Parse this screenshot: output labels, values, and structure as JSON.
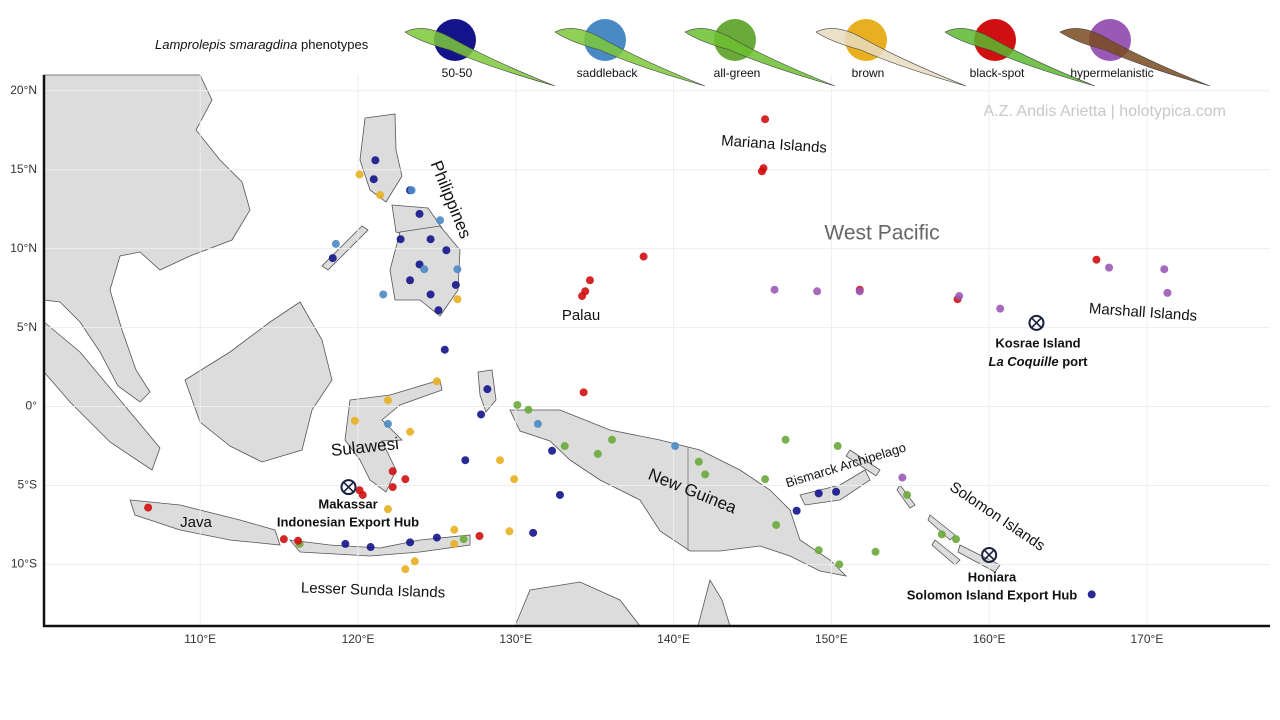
{
  "legend_title": {
    "italic": "Lamprolepis smaragdina",
    "rest": "phenotypes"
  },
  "credit": "A.Z. Andis Arietta | holotypica.com",
  "labels": {
    "philippines": "Philippines",
    "mariana": "Mariana Islands",
    "west_pacific": "West Pacific",
    "palau": "Palau",
    "marshall": "Marshall  Islands",
    "sulawesi": "Sulawesi",
    "java": "Java",
    "new_guinea": "New Guinea",
    "bismarck": "Bismarck Archipelago",
    "solomon": "Solomon Islands",
    "lesser_sunda": "Lesser Sunda Islands"
  },
  "ports": [
    {
      "name": "Makassar",
      "subtitle": "Indonesian Export Hub",
      "lon": 119.4,
      "lat": -5.1
    },
    {
      "name": "Kosrae Island",
      "subtitle_italic": "La Coquille",
      "subtitle_rest": "port",
      "lon": 163.0,
      "lat": 5.3
    },
    {
      "name": "Honiara",
      "subtitle": "Solomon Island Export Hub",
      "lon": 160.0,
      "lat": -9.4
    }
  ],
  "chart_data": {
    "type": "scatter",
    "xlim": [
      100.1,
      177.8
    ],
    "ylim": [
      -13.9,
      21
    ],
    "grid": true,
    "xticks": [
      {
        "value": 110,
        "label": "110°E"
      },
      {
        "value": 120,
        "label": "120°E"
      },
      {
        "value": 130,
        "label": "130°E"
      },
      {
        "value": 140,
        "label": "140°E"
      },
      {
        "value": 150,
        "label": "150°E"
      },
      {
        "value": 160,
        "label": "160°E"
      },
      {
        "value": 170,
        "label": "170°E"
      }
    ],
    "yticks": [
      {
        "value": -10,
        "label": "10°S"
      },
      {
        "value": -5,
        "label": "5°S"
      },
      {
        "value": 0,
        "label": "0°"
      },
      {
        "value": 5,
        "label": "5°N"
      },
      {
        "value": 10,
        "label": "10°N"
      },
      {
        "value": 15,
        "label": "15°N"
      },
      {
        "value": 20,
        "label": "20°N"
      }
    ],
    "series": [
      {
        "name": "50-50",
        "color": "#14148a",
        "x": [
          121.1,
          121.0,
          123.3,
          123.9,
          122.7,
          124.6,
          125.6,
          123.9,
          123.3,
          124.6,
          125.1,
          126.2,
          118.4,
          125.5,
          128.2,
          127.8,
          132.8,
          132.3,
          126.8,
          119.2,
          120.8,
          123.3,
          125.0,
          131.1,
          149.2,
          150.3,
          147.8,
          166.5
        ],
        "y": [
          15.6,
          14.4,
          13.7,
          12.2,
          10.6,
          10.6,
          9.9,
          9.0,
          8.0,
          7.1,
          6.1,
          7.7,
          9.4,
          3.6,
          1.1,
          -0.5,
          -5.6,
          -2.8,
          -3.4,
          -8.7,
          -8.9,
          -8.6,
          -8.3,
          -8.0,
          -5.5,
          -5.4,
          -6.6,
          -11.9
        ]
      },
      {
        "name": "saddleback",
        "color": "#4a8ac4",
        "x": [
          118.6,
          121.6,
          123.4,
          125.2,
          126.3,
          124.2,
          131.4,
          140.1,
          121.9
        ],
        "y": [
          10.3,
          7.1,
          13.7,
          11.8,
          8.7,
          8.7,
          -1.1,
          -2.5,
          -1.1
        ]
      },
      {
        "name": "all-green",
        "color": "#6aaa3a",
        "x": [
          130.1,
          130.8,
          133.1,
          135.2,
          136.1,
          141.6,
          142.0,
          145.8,
          147.1,
          150.4,
          154.8,
          157.0,
          157.9,
          149.2,
          150.5,
          152.8,
          116.3,
          126.7,
          146.5
        ],
        "y": [
          0.1,
          -0.2,
          -2.5,
          -3.0,
          -2.1,
          -3.5,
          -4.3,
          -4.6,
          -2.1,
          -2.5,
          -5.6,
          -8.1,
          -8.4,
          -9.1,
          -10.0,
          -9.2,
          -8.7,
          -8.4,
          -7.5
        ]
      },
      {
        "name": "brown",
        "color": "#e8b020",
        "x": [
          120.1,
          121.4,
          126.3,
          125.0,
          119.8,
          121.9,
          123.3,
          129.0,
          129.9,
          121.9,
          123.0,
          123.6,
          126.1,
          129.6,
          126.1
        ],
        "y": [
          14.7,
          13.4,
          6.8,
          1.6,
          -0.9,
          0.4,
          -1.6,
          -3.4,
          -4.6,
          -6.5,
          -10.3,
          -9.8,
          -7.8,
          -7.9,
          -8.7
        ]
      },
      {
        "name": "black-spot",
        "color": "#d01010",
        "x": [
          145.8,
          145.7,
          145.6,
          138.1,
          134.7,
          134.4,
          134.2,
          134.3,
          166.8,
          158.0,
          151.8,
          122.2,
          123.0,
          122.2,
          120.1,
          106.7,
          115.3,
          116.2,
          127.7,
          120.3
        ],
        "y": [
          18.2,
          15.1,
          14.9,
          9.5,
          8.0,
          7.3,
          7.0,
          0.9,
          9.3,
          6.8,
          7.4,
          -4.1,
          -4.6,
          -5.1,
          -5.3,
          -6.4,
          -8.4,
          -8.5,
          -8.2,
          -5.6
        ]
      },
      {
        "name": "hypermelanistic",
        "color": "#9b59b6",
        "x": [
          146.4,
          149.1,
          151.8,
          158.1,
          160.7,
          167.6,
          171.1,
          171.3,
          154.5
        ],
        "y": [
          7.4,
          7.3,
          7.3,
          7.0,
          6.2,
          8.8,
          8.7,
          7.2,
          -4.5
        ]
      }
    ]
  }
}
